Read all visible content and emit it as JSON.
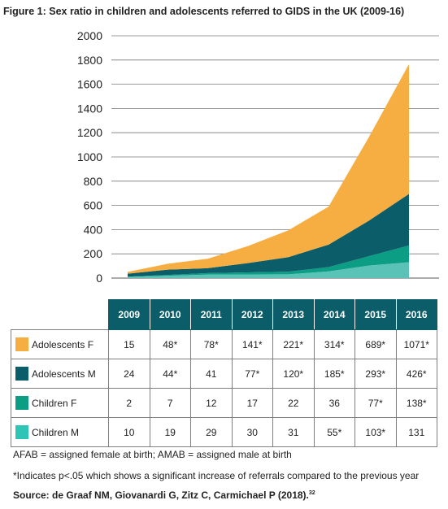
{
  "title": "Figure 1: Sex ratio in children and adolescents referred to GIDS in the UK (2009-16)",
  "chart_data": {
    "type": "area",
    "stacked": true,
    "categories": [
      "2009",
      "2010",
      "2011",
      "2012",
      "2013",
      "2014",
      "2015",
      "2016"
    ],
    "ylim": [
      0,
      2000
    ],
    "yticks": [
      "0",
      "200",
      "400",
      "600",
      "800",
      "1000",
      "1200",
      "1400",
      "1600",
      "1800",
      "2000"
    ],
    "grid": true,
    "series": [
      {
        "name": "Children M",
        "color": "#5bc2b7",
        "values": [
          10,
          19,
          29,
          30,
          31,
          55,
          103,
          131
        ]
      },
      {
        "name": "Children F",
        "color": "#0b9e85",
        "values": [
          2,
          7,
          12,
          17,
          22,
          36,
          77,
          138
        ]
      },
      {
        "name": "Adolescents M",
        "color": "#0b5e69",
        "values": [
          24,
          44,
          41,
          77,
          120,
          185,
          293,
          426
        ]
      },
      {
        "name": "Adolescents F",
        "color": "#f6ad42",
        "values": [
          15,
          48,
          78,
          141,
          221,
          314,
          689,
          1071
        ]
      }
    ]
  },
  "table": {
    "years": [
      "2009",
      "2010",
      "2011",
      "2012",
      "2013",
      "2014",
      "2015",
      "2016"
    ],
    "rows": [
      {
        "label": "Adolescents F",
        "color": "#f6ad42",
        "cells": [
          "15",
          "48*",
          "78*",
          "141*",
          "221*",
          "314*",
          "689*",
          "1071*"
        ]
      },
      {
        "label": "Adolescents M",
        "color": "#0b5e69",
        "cells": [
          "24",
          "44*",
          "41",
          "77*",
          "120*",
          "185*",
          "293*",
          "426*"
        ]
      },
      {
        "label": "Children F",
        "color": "#0b9e85",
        "cells": [
          "2",
          "7",
          "12",
          "17",
          "22",
          "36",
          "77*",
          "138*"
        ]
      },
      {
        "label": "Children M",
        "color": "#2ec4b6",
        "cells": [
          "10",
          "19",
          "29",
          "30",
          "31",
          "55*",
          "103*",
          "131"
        ]
      }
    ]
  },
  "footnotes": {
    "line1": "AFAB = assigned female at birth; AMAB = assigned male at birth",
    "line2": "*Indicates p<.05 which shows a significant increase of referrals compared to the previous year",
    "line3": "Source: de Graaf NM, Giovanardi G, Zitz C, Carmichael P (2018).",
    "line3_ref": "32"
  }
}
